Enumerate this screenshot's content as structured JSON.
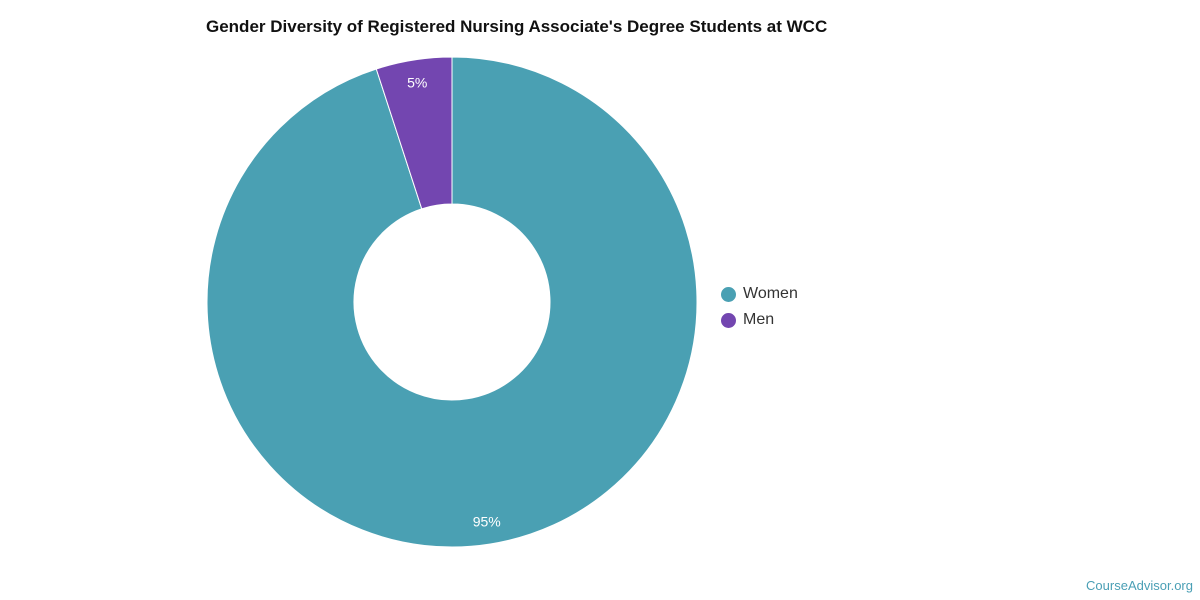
{
  "chart_data": {
    "type": "pie",
    "variant": "donut",
    "title": "Gender Diversity of Registered Nursing Associate's Degree Students at WCC",
    "slices": [
      {
        "name": "Women",
        "value": 95,
        "label": "95%",
        "color": "#4aa0b3"
      },
      {
        "name": "Men",
        "value": 5,
        "label": "5%",
        "color": "#7346b0"
      }
    ],
    "legend_position": "right"
  },
  "footer": "CourseAdvisor.org"
}
